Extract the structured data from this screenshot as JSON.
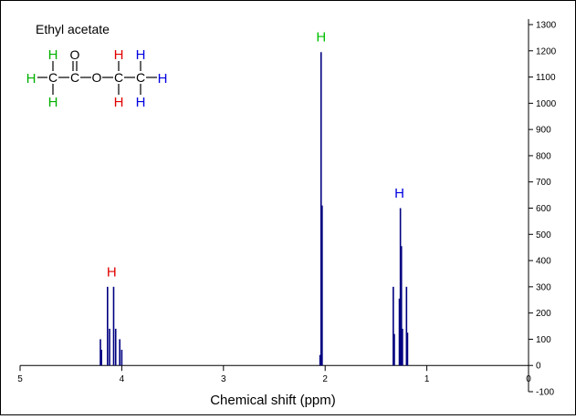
{
  "chart_data": {
    "type": "line",
    "title": "",
    "xlabel": "Chemical shift  (ppm)",
    "ylabel": "",
    "xlim": [
      5,
      0
    ],
    "ylim": [
      -100,
      1300
    ],
    "x_reversed": true,
    "x_ticks": [
      "5",
      "4",
      "3",
      "2",
      "1",
      "0"
    ],
    "y_ticks": [
      "1300",
      "1200",
      "1100",
      "1000",
      "900",
      "800",
      "700",
      "600",
      "500",
      "400",
      "300",
      "200",
      "100",
      "0",
      "-100"
    ],
    "grid": false,
    "line_color": "#000080",
    "series": [
      {
        "peaks": [
          {
            "x": 4.21,
            "y": 100
          },
          {
            "x": 4.2,
            "y": 60
          },
          {
            "x": 4.14,
            "y": 300
          },
          {
            "x": 4.12,
            "y": 140
          },
          {
            "x": 4.08,
            "y": 300
          },
          {
            "x": 4.06,
            "y": 140
          },
          {
            "x": 4.02,
            "y": 100
          },
          {
            "x": 4.0,
            "y": 60
          },
          {
            "x": 2.05,
            "y": 40
          },
          {
            "x": 2.04,
            "y": 1195
          },
          {
            "x": 2.03,
            "y": 610
          },
          {
            "x": 1.33,
            "y": 300
          },
          {
            "x": 1.32,
            "y": 120
          },
          {
            "x": 1.27,
            "y": 255
          },
          {
            "x": 1.26,
            "y": 600
          },
          {
            "x": 1.25,
            "y": 455
          },
          {
            "x": 1.24,
            "y": 140
          },
          {
            "x": 1.2,
            "y": 300
          },
          {
            "x": 1.19,
            "y": 125
          }
        ]
      }
    ],
    "annotations": [
      {
        "text": "H",
        "x": 4.1,
        "y": 340,
        "color": "#e00000"
      },
      {
        "text": "H",
        "x": 2.04,
        "y": 1235,
        "color": "#00c000"
      },
      {
        "text": "H",
        "x": 1.27,
        "y": 640,
        "color": "#0000e0"
      }
    ]
  },
  "molecule": {
    "name": "Ethyl acetate",
    "colors": {
      "green": "#00b000",
      "red": "#e00000",
      "blue": "#0000e0",
      "black": "#000000"
    },
    "atoms": {
      "h_left": "H",
      "c1": "C",
      "h_top1": "H",
      "h_bot1": "H",
      "c2": "C",
      "o_dbl": "O",
      "o_ester": "O",
      "c3": "C",
      "h_top3": "H",
      "h_bot3": "H",
      "c4": "C",
      "h_top4": "H",
      "h_bot4": "H",
      "h_right": "H"
    }
  }
}
